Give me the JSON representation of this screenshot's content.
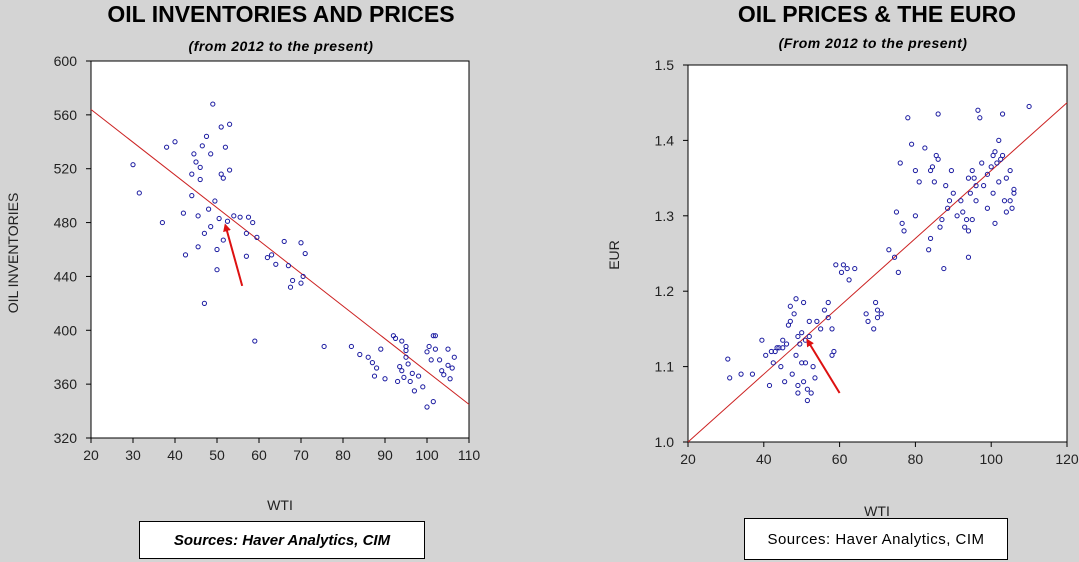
{
  "chart_data": [
    {
      "type": "scatter",
      "title": "OIL INVENTORIES AND PRICES",
      "subtitle": "(from 2012 to the present)",
      "xlabel": "WTI",
      "ylabel": "OIL INVENTORIES",
      "xlim": [
        20,
        110
      ],
      "ylim": [
        320,
        600
      ],
      "xticks": [
        20,
        30,
        40,
        50,
        60,
        70,
        80,
        90,
        100,
        110
      ],
      "yticks": [
        320,
        360,
        400,
        440,
        480,
        520,
        560,
        600
      ],
      "source": "Sources:  Haver Analytics, CIM",
      "marker_color": "#1a1aa0",
      "fit_color": "#cc2222",
      "arrow_color": "#dd1111",
      "fit_line": {
        "x": [
          20,
          110
        ],
        "y": [
          564,
          345
        ]
      },
      "arrow": {
        "from": [
          56,
          433
        ],
        "to": [
          52,
          478
        ]
      },
      "points": [
        [
          30,
          523
        ],
        [
          31.5,
          502
        ],
        [
          37,
          480
        ],
        [
          38,
          536
        ],
        [
          40,
          540
        ],
        [
          42,
          487
        ],
        [
          42.5,
          456
        ],
        [
          44,
          500
        ],
        [
          44,
          516
        ],
        [
          44.5,
          531
        ],
        [
          45,
          525
        ],
        [
          45.5,
          462
        ],
        [
          45.5,
          485
        ],
        [
          46,
          512
        ],
        [
          46,
          521
        ],
        [
          46.5,
          537
        ],
        [
          47,
          420
        ],
        [
          47,
          472
        ],
        [
          47.5,
          544
        ],
        [
          48,
          490
        ],
        [
          48.5,
          531
        ],
        [
          48.5,
          477
        ],
        [
          49,
          568
        ],
        [
          49.5,
          496
        ],
        [
          50,
          445
        ],
        [
          50,
          460
        ],
        [
          50.5,
          483
        ],
        [
          51,
          516
        ],
        [
          51,
          551
        ],
        [
          51.5,
          467
        ],
        [
          51.5,
          513
        ],
        [
          52,
          536
        ],
        [
          52.5,
          481
        ],
        [
          53,
          553
        ],
        [
          53,
          519
        ],
        [
          54,
          485
        ],
        [
          55.5,
          484
        ],
        [
          57,
          472
        ],
        [
          57.5,
          484
        ],
        [
          57,
          455
        ],
        [
          58.5,
          480
        ],
        [
          59,
          392
        ],
        [
          59.5,
          469
        ],
        [
          62,
          454
        ],
        [
          63,
          456
        ],
        [
          64,
          449
        ],
        [
          66,
          466
        ],
        [
          67,
          448
        ],
        [
          67.5,
          432
        ],
        [
          68,
          437
        ],
        [
          70,
          465
        ],
        [
          70,
          435
        ],
        [
          70.5,
          440
        ],
        [
          71,
          457
        ],
        [
          75.5,
          388
        ],
        [
          82,
          388
        ],
        [
          84,
          382
        ],
        [
          86,
          380
        ],
        [
          87,
          376
        ],
        [
          87.5,
          366
        ],
        [
          88,
          372
        ],
        [
          89,
          386
        ],
        [
          90,
          364
        ],
        [
          92,
          396
        ],
        [
          92.5,
          394
        ],
        [
          93,
          362
        ],
        [
          93.5,
          373
        ],
        [
          94,
          392
        ],
        [
          94,
          370
        ],
        [
          94.5,
          365
        ],
        [
          95,
          385
        ],
        [
          95,
          380
        ],
        [
          95,
          388
        ],
        [
          95.5,
          375
        ],
        [
          96,
          362
        ],
        [
          96.5,
          368
        ],
        [
          97,
          355
        ],
        [
          98,
          366
        ],
        [
          99,
          358
        ],
        [
          100,
          384
        ],
        [
          100,
          343
        ],
        [
          100.5,
          388
        ],
        [
          101,
          378
        ],
        [
          101.5,
          396
        ],
        [
          101.5,
          347
        ],
        [
          102,
          396
        ],
        [
          102,
          386
        ],
        [
          103,
          378
        ],
        [
          103.5,
          370
        ],
        [
          104,
          367
        ],
        [
          105,
          386
        ],
        [
          105,
          374
        ],
        [
          105.5,
          364
        ],
        [
          106,
          372
        ],
        [
          106.5,
          380
        ]
      ]
    },
    {
      "type": "scatter",
      "title": "OIL PRICES & THE EURO",
      "subtitle": "(From 2012 to the present)",
      "xlabel": "WTI",
      "ylabel": "EUR",
      "xlim": [
        20,
        120
      ],
      "ylim": [
        1.0,
        1.5
      ],
      "xticks": [
        20,
        40,
        60,
        80,
        100,
        120
      ],
      "yticks": [
        1.0,
        1.1,
        1.2,
        1.3,
        1.4,
        1.5
      ],
      "source": "Sources:  Haver Analytics, CIM",
      "marker_color": "#1a1aa0",
      "fit_color": "#cc2222",
      "arrow_color": "#dd1111",
      "fit_line": {
        "x": [
          20,
          120
        ],
        "y": [
          1.0,
          1.45
        ]
      },
      "arrow": {
        "from": [
          60,
          1.065
        ],
        "to": [
          51.5,
          1.135
        ]
      },
      "points": [
        [
          30.5,
          1.11
        ],
        [
          31,
          1.085
        ],
        [
          34,
          1.09
        ],
        [
          37,
          1.09
        ],
        [
          39.5,
          1.135
        ],
        [
          40.5,
          1.115
        ],
        [
          41.5,
          1.075
        ],
        [
          42,
          1.12
        ],
        [
          42.5,
          1.105
        ],
        [
          43,
          1.12
        ],
        [
          43.5,
          1.125
        ],
        [
          44,
          1.125
        ],
        [
          44.5,
          1.1
        ],
        [
          45,
          1.125
        ],
        [
          45,
          1.135
        ],
        [
          45.5,
          1.08
        ],
        [
          46,
          1.13
        ],
        [
          46.5,
          1.155
        ],
        [
          47,
          1.16
        ],
        [
          47,
          1.18
        ],
        [
          47.5,
          1.09
        ],
        [
          48,
          1.17
        ],
        [
          48.5,
          1.115
        ],
        [
          48.5,
          1.19
        ],
        [
          49,
          1.065
        ],
        [
          49,
          1.075
        ],
        [
          49,
          1.14
        ],
        [
          49.5,
          1.13
        ],
        [
          50,
          1.145
        ],
        [
          50,
          1.105
        ],
        [
          50.5,
          1.185
        ],
        [
          50.5,
          1.08
        ],
        [
          51,
          1.105
        ],
        [
          51,
          1.135
        ],
        [
          51.5,
          1.07
        ],
        [
          51.5,
          1.055
        ],
        [
          52,
          1.14
        ],
        [
          52,
          1.16
        ],
        [
          52.5,
          1.065
        ],
        [
          53,
          1.1
        ],
        [
          53.5,
          1.085
        ],
        [
          54,
          1.16
        ],
        [
          55,
          1.15
        ],
        [
          56,
          1.175
        ],
        [
          57,
          1.185
        ],
        [
          57,
          1.165
        ],
        [
          58,
          1.115
        ],
        [
          58,
          1.15
        ],
        [
          58.5,
          1.12
        ],
        [
          59,
          1.235
        ],
        [
          60.5,
          1.225
        ],
        [
          61,
          1.235
        ],
        [
          62,
          1.23
        ],
        [
          62.5,
          1.215
        ],
        [
          64,
          1.23
        ],
        [
          67,
          1.17
        ],
        [
          67.5,
          1.16
        ],
        [
          69,
          1.15
        ],
        [
          69.5,
          1.185
        ],
        [
          70,
          1.175
        ],
        [
          70,
          1.165
        ],
        [
          71,
          1.17
        ],
        [
          73,
          1.255
        ],
        [
          74.5,
          1.245
        ],
        [
          75,
          1.305
        ],
        [
          75.5,
          1.225
        ],
        [
          76,
          1.37
        ],
        [
          76.5,
          1.29
        ],
        [
          77,
          1.28
        ],
        [
          78,
          1.43
        ],
        [
          79,
          1.395
        ],
        [
          80,
          1.36
        ],
        [
          80,
          1.3
        ],
        [
          81,
          1.345
        ],
        [
          82.5,
          1.39
        ],
        [
          83.5,
          1.255
        ],
        [
          84,
          1.36
        ],
        [
          84,
          1.27
        ],
        [
          84.5,
          1.365
        ],
        [
          85,
          1.345
        ],
        [
          85.5,
          1.38
        ],
        [
          86,
          1.435
        ],
        [
          86,
          1.375
        ],
        [
          86.5,
          1.285
        ],
        [
          87,
          1.295
        ],
        [
          87.5,
          1.23
        ],
        [
          88,
          1.34
        ],
        [
          88.5,
          1.31
        ],
        [
          89,
          1.32
        ],
        [
          89.5,
          1.36
        ],
        [
          90,
          1.33
        ],
        [
          91,
          1.3
        ],
        [
          92,
          1.32
        ],
        [
          92.5,
          1.305
        ],
        [
          93,
          1.285
        ],
        [
          93.5,
          1.295
        ],
        [
          94,
          1.245
        ],
        [
          94,
          1.35
        ],
        [
          94,
          1.28
        ],
        [
          94.5,
          1.33
        ],
        [
          95,
          1.36
        ],
        [
          95,
          1.295
        ],
        [
          95.5,
          1.35
        ],
        [
          96,
          1.34
        ],
        [
          96,
          1.32
        ],
        [
          96.5,
          1.44
        ],
        [
          97,
          1.43
        ],
        [
          97.5,
          1.37
        ],
        [
          98,
          1.34
        ],
        [
          99,
          1.355
        ],
        [
          99,
          1.31
        ],
        [
          100,
          1.365
        ],
        [
          100.5,
          1.38
        ],
        [
          100.5,
          1.33
        ],
        [
          101,
          1.385
        ],
        [
          101,
          1.29
        ],
        [
          101.5,
          1.37
        ],
        [
          102,
          1.345
        ],
        [
          102,
          1.4
        ],
        [
          102.5,
          1.375
        ],
        [
          103,
          1.435
        ],
        [
          103,
          1.38
        ],
        [
          103.5,
          1.32
        ],
        [
          104,
          1.305
        ],
        [
          104,
          1.35
        ],
        [
          105,
          1.32
        ],
        [
          105,
          1.36
        ],
        [
          105.5,
          1.31
        ],
        [
          106,
          1.33
        ],
        [
          106,
          1.335
        ],
        [
          110,
          1.445
        ]
      ]
    }
  ]
}
